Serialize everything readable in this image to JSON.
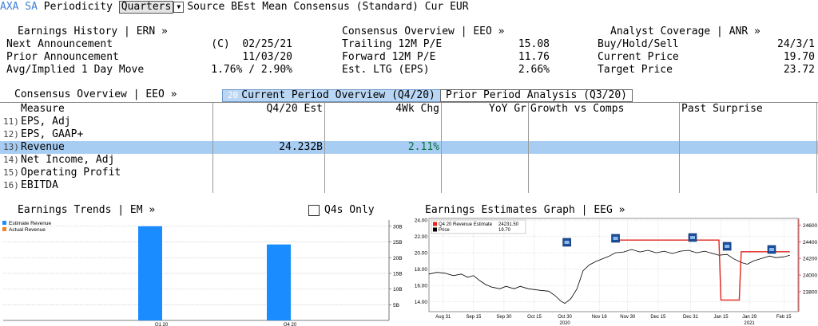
{
  "topbar": {
    "ticker": "AXA SA",
    "periodicity_label": "Periodicity",
    "periodicity_value": "Quarters",
    "source_label": "Source",
    "source_value": "BEst Mean Consensus (Standard)",
    "currency_label": "Cur",
    "currency_value": "EUR"
  },
  "earnings_history": {
    "title": "Earnings History | ERN »",
    "rows": [
      {
        "label": "Next Announcement",
        "value": "(C)  02/25/21"
      },
      {
        "label": "Prior Announcement",
        "value": "11/03/20"
      },
      {
        "label": "Avg/Implied 1 Day Move",
        "value": "1.76% / 2.90%"
      }
    ]
  },
  "consensus_box": {
    "title": "Consensus Overview | EEO »",
    "rows": [
      {
        "label": "Trailing 12M P/E",
        "value": "15.08"
      },
      {
        "label": "Forward 12M P/E",
        "value": "11.76"
      },
      {
        "label": "Est. LTG (EPS)",
        "value": "2.66%"
      }
    ]
  },
  "analyst_coverage": {
    "title": "Analyst Coverage | ANR »",
    "rows": [
      {
        "label": "Buy/Hold/Sell",
        "value": "24/3/1"
      },
      {
        "label": "Current Price",
        "value": "19.70"
      },
      {
        "label": "Target Price",
        "value": "23.72"
      }
    ]
  },
  "tabs": {
    "section_title": "Consensus Overview | EEO »",
    "active_num": "20",
    "active_label": "Current Period Overview (Q4/20)",
    "inactive_label": "Prior Period Analysis (Q3/20)"
  },
  "table": {
    "columns": [
      "Measure",
      "Q4/20 Est",
      "4Wk Chg",
      "YoY Gr",
      "Growth vs Comps",
      "Past Surprise"
    ],
    "rows": [
      {
        "num": "11)",
        "measure": "EPS, Adj",
        "est": "",
        "chg": ""
      },
      {
        "num": "12)",
        "measure": "EPS, GAAP+",
        "est": "",
        "chg": ""
      },
      {
        "num": "13)",
        "measure": "Revenue",
        "est": "24.232B",
        "chg": "2.11%"
      },
      {
        "num": "14)",
        "measure": "Net Income, Adj",
        "est": "",
        "chg": ""
      },
      {
        "num": "15)",
        "measure": "Operating Profit",
        "est": "",
        "chg": ""
      },
      {
        "num": "16)",
        "measure": "EBITDA",
        "est": "",
        "chg": ""
      }
    ]
  },
  "earnings_trends": {
    "title": "Earnings Trends | EM »",
    "checkbox_label": "Q4s Only"
  },
  "estimates_graph": {
    "title": "Earnings Estimates Graph | EEG »"
  },
  "colors": {
    "estimate_bar": "#1a8cff",
    "actual_bar": "#f58220",
    "price_line": "#000000",
    "estimate_line": "#e3241b",
    "selected_row": "#a7cdf3",
    "ticker": "#3f7fd6"
  },
  "chart_data": [
    {
      "type": "bar",
      "legend": [
        "Estimate Revenue",
        "Actual Revenue"
      ],
      "legend_position": "top-left",
      "categories": [
        "Q1 20",
        "Q4 20"
      ],
      "series": [
        {
          "name": "Estimate Revenue",
          "values": [
            30.0,
            24.2
          ]
        },
        {
          "name": "Actual Revenue",
          "values": [
            null,
            null
          ]
        }
      ],
      "y_axis_side": "right",
      "ylim": [
        0,
        32
      ],
      "yticks": [
        "5B",
        "10B",
        "15B",
        "20B",
        "25B",
        "30B"
      ],
      "grid": true
    },
    {
      "type": "line",
      "legend": [
        {
          "name": "Q4 20 Revenue Estimate",
          "value": "24231.50"
        },
        {
          "name": "Price",
          "value": "19.70"
        }
      ],
      "legend_position": "top-left",
      "left_axis": {
        "ylim": [
          12.8,
          24.2
        ],
        "ticks": [
          "14.00",
          "16.00",
          "18.00",
          "20.00",
          "22.00",
          "24.00"
        ]
      },
      "right_axis": {
        "ylim": [
          23560,
          24680
        ],
        "ticks": [
          "23800",
          "24000",
          "24200",
          "24400",
          "24600"
        ]
      },
      "x_ticks": [
        "Aug 31",
        "Sep 15",
        "Sep 30",
        "Oct 15",
        "Oct 30",
        "Nov 16",
        "Nov 30",
        "Dec 15",
        "Dec 31",
        "Jan 15",
        "Jan 29",
        "Feb 15"
      ],
      "x_year_labels": [
        {
          "label": "2020",
          "at": "Oct 30"
        },
        {
          "label": "2021",
          "at": "Jan 29"
        }
      ],
      "event_markers": [
        "Oct 31",
        "Nov 24",
        "Jan 1",
        "Jan 18",
        "Feb 9"
      ],
      "series": [
        {
          "name": "Price",
          "axis": "left",
          "points": [
            [
              "Aug 24",
              17.4
            ],
            [
              "Aug 28",
              17.6
            ],
            [
              "Sep 1",
              17.5
            ],
            [
              "Sep 5",
              17.2
            ],
            [
              "Sep 9",
              17.4
            ],
            [
              "Sep 12",
              17.0
            ],
            [
              "Sep 15",
              17.2
            ],
            [
              "Sep 18",
              16.6
            ],
            [
              "Sep 21",
              16.1
            ],
            [
              "Sep 24",
              15.8
            ],
            [
              "Sep 28",
              15.6
            ],
            [
              "Oct 1",
              15.9
            ],
            [
              "Oct 5",
              15.6
            ],
            [
              "Oct 8",
              15.9
            ],
            [
              "Oct 12",
              15.6
            ],
            [
              "Oct 15",
              15.5
            ],
            [
              "Oct 18",
              15.4
            ],
            [
              "Oct 22",
              15.3
            ],
            [
              "Oct 25",
              14.8
            ],
            [
              "Oct 28",
              14.1
            ],
            [
              "Oct 30",
              13.8
            ],
            [
              "Nov 2",
              14.4
            ],
            [
              "Nov 5",
              15.6
            ],
            [
              "Nov 8",
              17.8
            ],
            [
              "Nov 11",
              18.5
            ],
            [
              "Nov 14",
              18.9
            ],
            [
              "Nov 18",
              19.3
            ],
            [
              "Nov 21",
              19.6
            ],
            [
              "Nov 24",
              20.0
            ],
            [
              "Nov 28",
              20.1
            ],
            [
              "Dec 2",
              20.4
            ],
            [
              "Dec 6",
              20.1
            ],
            [
              "Dec 10",
              20.3
            ],
            [
              "Dec 14",
              20.0
            ],
            [
              "Dec 18",
              20.2
            ],
            [
              "Dec 22",
              19.9
            ],
            [
              "Dec 26",
              20.2
            ],
            [
              "Dec 30",
              20.3
            ],
            [
              "Jan 3",
              20.0
            ],
            [
              "Jan 7",
              20.2
            ],
            [
              "Jan 11",
              19.9
            ],
            [
              "Jan 14",
              19.7
            ],
            [
              "Jan 18",
              19.8
            ],
            [
              "Jan 21",
              19.3
            ],
            [
              "Jan 25",
              18.8
            ],
            [
              "Jan 28",
              18.6
            ],
            [
              "Jan 31",
              19.0
            ],
            [
              "Feb 4",
              19.3
            ],
            [
              "Feb 8",
              19.6
            ],
            [
              "Feb 11",
              19.4
            ],
            [
              "Feb 15",
              19.5
            ],
            [
              "Feb 18",
              19.7
            ]
          ]
        },
        {
          "name": "Q4 20 Revenue Estimate",
          "axis": "right",
          "points": [
            [
              "Nov 24",
              24420
            ],
            [
              "Jan 14",
              24420
            ],
            [
              "Jan 15",
              23700
            ],
            [
              "Jan 24",
              23700
            ],
            [
              "Jan 25",
              24280
            ],
            [
              "Feb 18",
              24280
            ]
          ]
        }
      ]
    }
  ]
}
